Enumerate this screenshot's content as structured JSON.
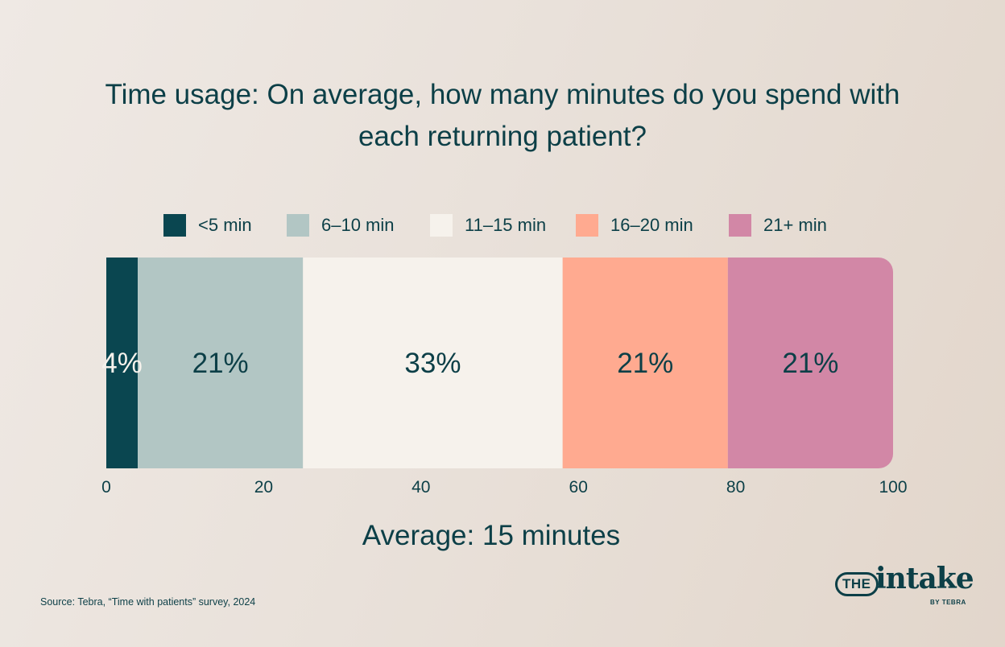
{
  "chart_data": {
    "type": "bar",
    "orientation": "horizontal-stacked",
    "title": "Time usage: On average, how many minutes do you spend with each returning patient?",
    "categories": [
      "<5 min",
      "6–10 min",
      "11–15 min",
      "16–20 min",
      "21+ min"
    ],
    "values": [
      4,
      21,
      33,
      21,
      21
    ],
    "labels": [
      "4%",
      "21%",
      "33%",
      "21%",
      "21%"
    ],
    "colors": [
      "#0a4650",
      "#b2c6c4",
      "#f6f2ec",
      "#ffaa90",
      "#d287a6"
    ],
    "label_colors": [
      "#f6f2ec",
      "#0c3f47",
      "#0c3f47",
      "#0c3f47",
      "#0c3f47"
    ],
    "xlim": [
      0,
      100
    ],
    "xticks": [
      0,
      20,
      40,
      60,
      80,
      100
    ],
    "grid": false,
    "legend_position": "top"
  },
  "average_label": "Average: 15 minutes",
  "source": "Source: Tebra, “Time with patients” survey, 2024",
  "logo": {
    "the": "THE",
    "word": "intake",
    "byline": "BY TEBRA"
  }
}
